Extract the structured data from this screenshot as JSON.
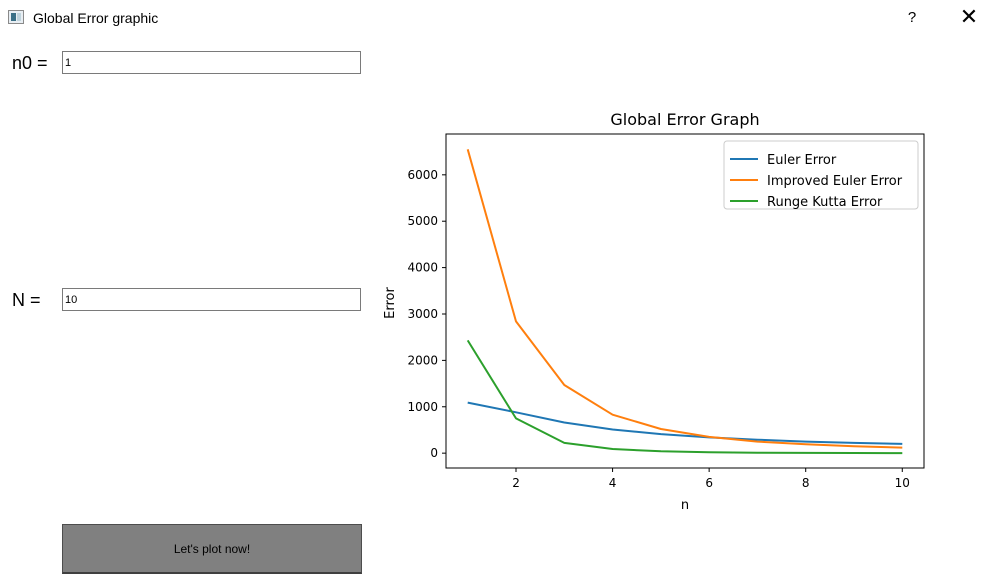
{
  "window": {
    "title": "Global Error graphic",
    "help_label": "?",
    "close_label": "✕"
  },
  "form": {
    "n0_label": "n0 =",
    "n0_value": "1",
    "N_label": "N =",
    "N_value": "10",
    "plot_button_label": "Let's plot now!"
  },
  "chart_data": {
    "type": "line",
    "title": "Global Error Graph",
    "xlabel": "n",
    "ylabel": "Error",
    "x": [
      1,
      2,
      3,
      4,
      5,
      6,
      7,
      8,
      9,
      10
    ],
    "xlim": [
      0.55,
      10.45
    ],
    "ylim": [
      -320,
      6880
    ],
    "xticks": [
      2,
      4,
      6,
      8,
      10
    ],
    "yticks": [
      0,
      1000,
      2000,
      3000,
      4000,
      5000,
      6000
    ],
    "legend_position": "top-right",
    "grid": false,
    "series": [
      {
        "name": "Euler Error",
        "color": "#1f77b4",
        "values": [
          1090,
          880,
          660,
          510,
          410,
          340,
          290,
          250,
          220,
          200
        ]
      },
      {
        "name": "Improved Euler Error",
        "color": "#ff7f0e",
        "values": [
          6550,
          2840,
          1470,
          830,
          520,
          350,
          250,
          190,
          150,
          120
        ]
      },
      {
        "name": "Runge Kutta Error",
        "color": "#2ca02c",
        "values": [
          2430,
          750,
          220,
          90,
          40,
          20,
          10,
          5,
          3,
          2
        ]
      }
    ]
  }
}
